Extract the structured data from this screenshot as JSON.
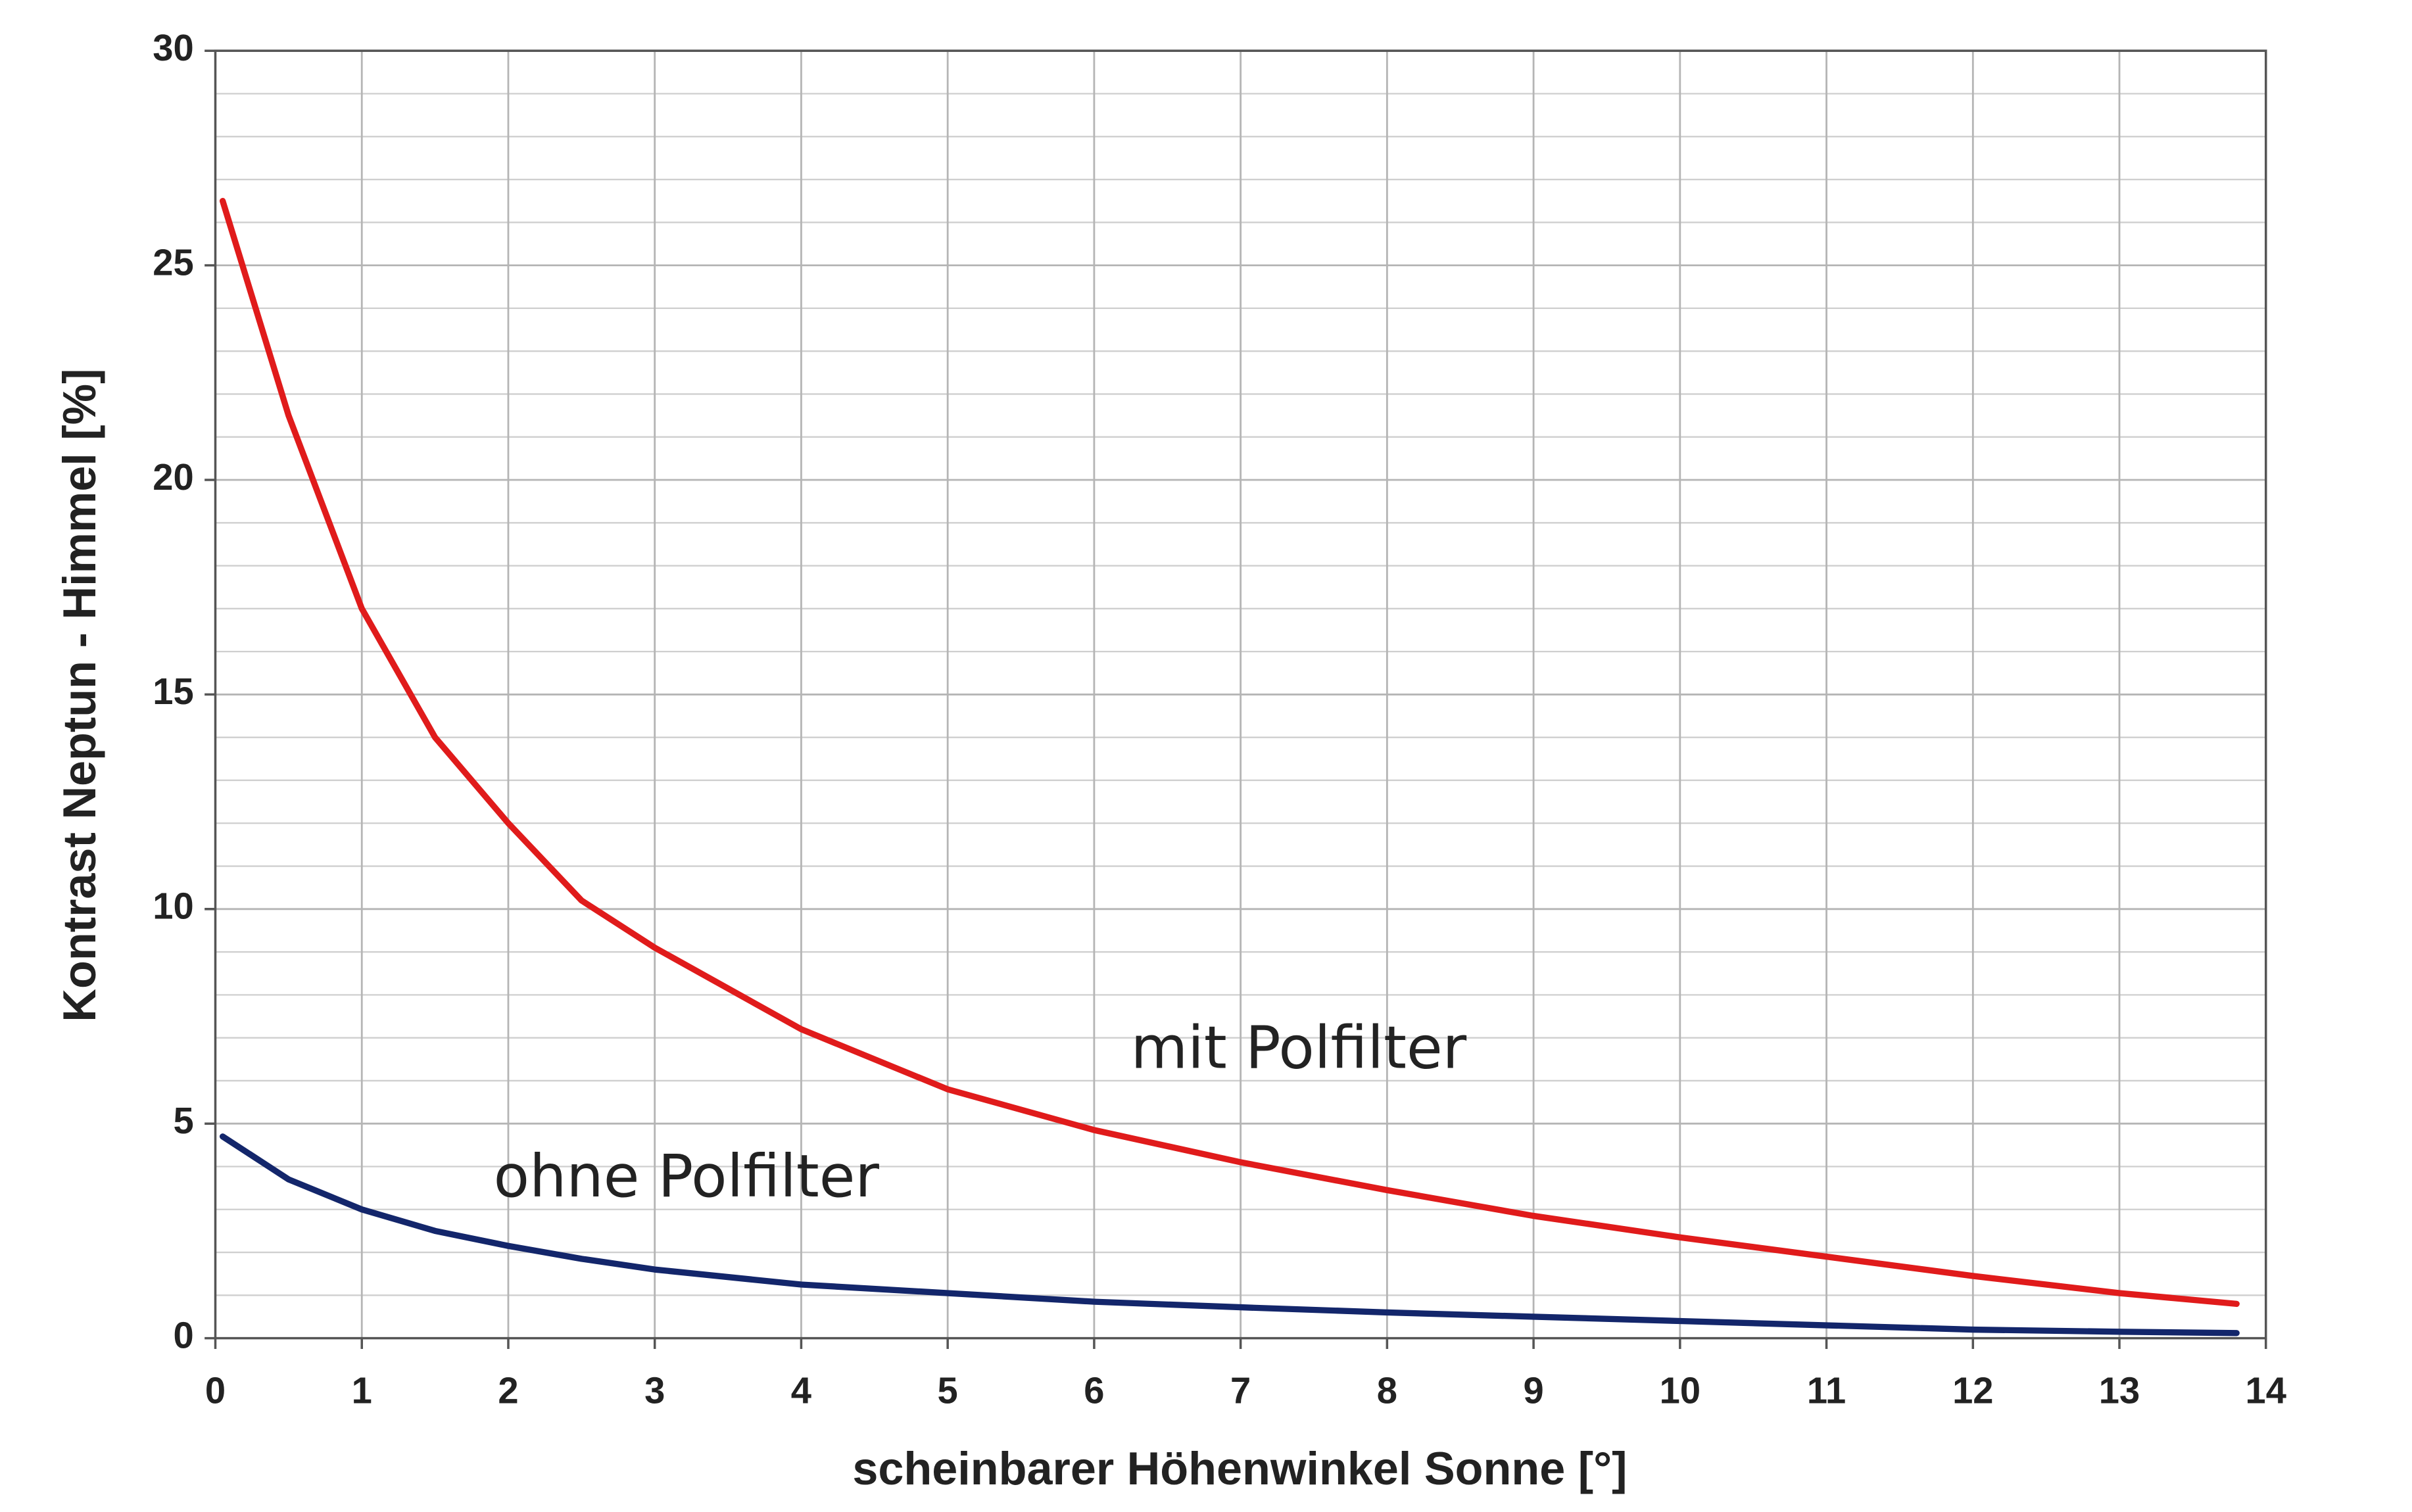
{
  "chart_data": {
    "type": "line",
    "xlabel": "scheinbarer Höhenwinkel Sonne [°]",
    "ylabel": "Kontrast Neptun - Himmel  [%]",
    "x": [
      0.05,
      0.5,
      1,
      1.5,
      2,
      2.5,
      3,
      4,
      5,
      6,
      7,
      8,
      9,
      10,
      11,
      12,
      13,
      13.8
    ],
    "series": [
      {
        "name": "mit Polfilter",
        "color": "#e01b1b",
        "values": [
          26.5,
          21.5,
          17,
          14,
          12,
          10.2,
          9.1,
          7.2,
          5.8,
          4.85,
          4.1,
          3.45,
          2.85,
          2.35,
          1.9,
          1.45,
          1.05,
          0.8
        ]
      },
      {
        "name": "ohne Polfilter",
        "color": "#13266b",
        "values": [
          4.7,
          3.7,
          3.0,
          2.5,
          2.15,
          1.85,
          1.6,
          1.25,
          1.05,
          0.85,
          0.72,
          0.6,
          0.5,
          0.4,
          0.3,
          0.2,
          0.15,
          0.12
        ]
      }
    ],
    "xlim": [
      0,
      14
    ],
    "xticks": [
      0,
      1,
      2,
      3,
      4,
      5,
      6,
      7,
      8,
      9,
      10,
      11,
      12,
      13,
      14
    ],
    "ylim": [
      0,
      30
    ],
    "yticks": [
      0,
      5,
      10,
      15,
      20,
      25,
      30
    ],
    "grid": true,
    "minor_grid": true
  }
}
